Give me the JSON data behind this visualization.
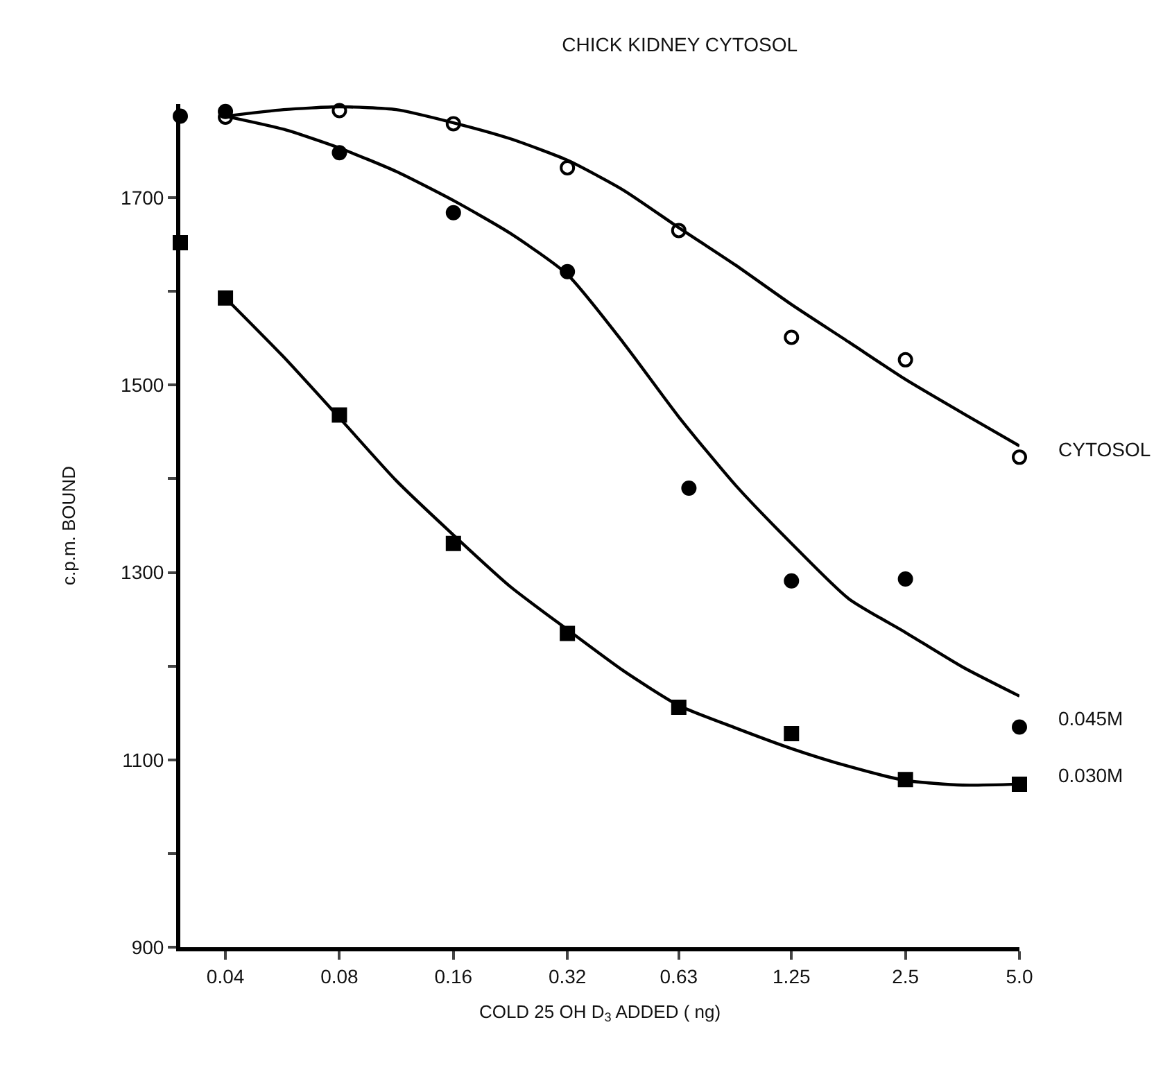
{
  "chart_data": {
    "type": "scatter",
    "title": "CHICK KIDNEY CYTOSOL",
    "xlabel": "COLD 25 OH D$_{3}$ ADDED ( ng)",
    "ylabel": "c.p.m. BOUND",
    "log": "x",
    "xlim": [
      0.0304,
      5.0
    ],
    "xticks": [
      0.04,
      0.08,
      0.16,
      0.32,
      0.63,
      1.25,
      2.5,
      {
        "value": 5.0,
        "label": "5.0"
      }
    ],
    "ylim": [
      900,
      1800
    ],
    "yticks": [
      900,
      {
        "value": 1000,
        "label": null
      },
      1100,
      {
        "value": 1200,
        "label": null
      },
      1300,
      {
        "value": 1400,
        "label": null
      },
      1500,
      {
        "value": 1600,
        "label": null
      },
      1700
    ],
    "grid": false,
    "series": [
      {
        "name": "CYTOSOL",
        "marker": "circle",
        "color": "#ffffff",
        "x": [
          0.04,
          0.08,
          0.16,
          0.32,
          0.63,
          1.25,
          2.5,
          5.0
        ],
        "values": [
          1786,
          1793,
          1779,
          1732,
          1665,
          1551,
          1527,
          1423
        ]
      },
      {
        "name": "0.045M",
        "marker": "circle",
        "color": "#000000",
        "x": [
          0.0304,
          0.04,
          0.08,
          0.16,
          0.32,
          0.67,
          1.25,
          2.5,
          5.0
        ],
        "values": [
          1787,
          1792,
          1748,
          1684,
          1621,
          1390,
          1291,
          1293,
          1135
        ]
      },
      {
        "name": "0.030M",
        "marker": "square",
        "color": "#000000",
        "x": [
          0.0304,
          0.04,
          0.08,
          0.16,
          0.32,
          0.63,
          1.25,
          2.5,
          5.0
        ],
        "values": [
          1652,
          1593,
          1468,
          1331,
          1235,
          1156,
          1128,
          1079,
          1074
        ]
      },
      {
        "type": "line",
        "marker": "none",
        "line_style": "solid",
        "color": "#000000",
        "x": [
          0.04,
          0.057,
          0.08,
          0.113,
          0.16,
          0.226,
          0.32,
          0.45,
          0.63,
          0.89,
          1.25,
          1.77,
          2.5,
          3.54,
          5.0
        ],
        "values": [
          1787,
          1794,
          1797,
          1794,
          1780,
          1763,
          1740,
          1708,
          1668,
          1628,
          1586,
          1546,
          1506,
          1470,
          1435
        ]
      },
      {
        "type": "line",
        "marker": "none",
        "line_style": "solid",
        "color": "#000000",
        "x": [
          0.04,
          0.057,
          0.08,
          0.113,
          0.16,
          0.226,
          0.32,
          0.45,
          0.63,
          0.89,
          1.25,
          1.77,
          2.5,
          3.54,
          5.0
        ],
        "values": [
          1787,
          1773,
          1753,
          1728,
          1697,
          1662,
          1618,
          1545,
          1466,
          1393,
          1331,
          1272,
          1236,
          1199,
          1168
        ]
      },
      {
        "type": "line",
        "marker": "none",
        "line_style": "solid",
        "color": "#000000",
        "x": [
          0.04,
          0.057,
          0.08,
          0.113,
          0.16,
          0.226,
          0.32,
          0.45,
          0.63,
          0.89,
          1.25,
          1.77,
          2.5,
          3.54,
          5.0
        ],
        "values": [
          1593,
          1530,
          1465,
          1398,
          1340,
          1285,
          1239,
          1195,
          1158,
          1134,
          1112,
          1093,
          1078,
          1073,
          1074
        ]
      }
    ]
  }
}
